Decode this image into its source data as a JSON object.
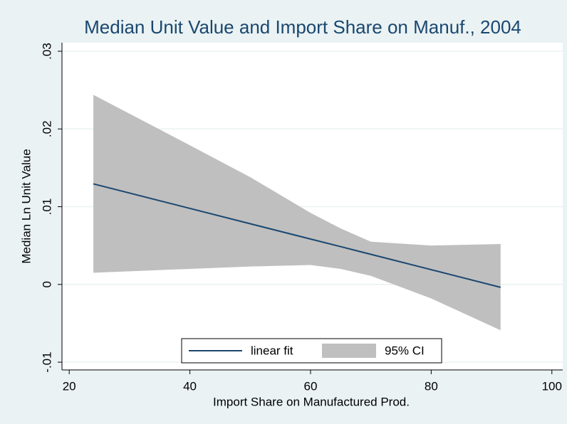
{
  "chart_data": {
    "type": "line",
    "title": "Median Unit Value and Import Share on Manuf., 2004",
    "x_label": "Import Share on Manufactured Prod.",
    "y_label": "Median Ln Unit Value",
    "x": [
      24,
      40,
      50,
      60,
      65,
      70,
      80,
      91.5
    ],
    "series": [
      {
        "name": "linear fit",
        "color": "#1a476f",
        "values": [
          0.01294,
          0.00978,
          0.00781,
          0.00584,
          0.00486,
          0.00387,
          0.0019,
          -0.00037
        ]
      }
    ],
    "band": {
      "name": "95% CI",
      "color": "#bfbfbf",
      "lower": [
        0.0015,
        0.002,
        0.0023,
        0.0025,
        0.002,
        0.0011,
        -0.0018,
        -0.0059
      ],
      "upper": [
        0.0244,
        0.0179,
        0.0138,
        0.0092,
        0.0072,
        0.0055,
        0.005,
        0.0052
      ]
    },
    "xlim": [
      18.8,
      101.8
    ],
    "ylim": [
      -0.011,
      0.0311
    ],
    "xticks": [
      20,
      40,
      60,
      80,
      100
    ],
    "yticks": [
      {
        "value": -0.01,
        "label": "-.01"
      },
      0,
      {
        "value": 0.01,
        "label": ".01"
      },
      {
        "value": 0.02,
        "label": ".02"
      },
      {
        "value": 0.03,
        "label": ".03"
      }
    ],
    "grid": true
  }
}
